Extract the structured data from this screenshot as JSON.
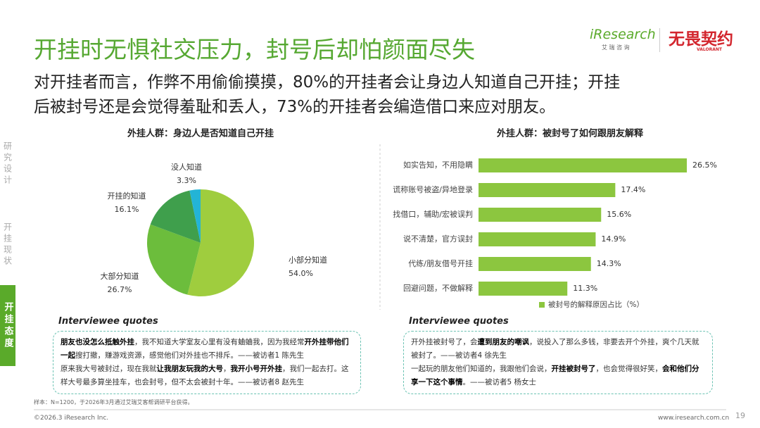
{
  "header": {
    "title": "开挂时无惧社交压力，封号后却怕颜面尽失",
    "subtitle_lines": [
      "对开挂者而言，作弊不用偷偷摸摸，80%的开挂者会让身边人知道自己开挂；开挂",
      "后被封号还是会觉得羞耻和丢人，73%的开挂者会编造借口来应对朋友。"
    ]
  },
  "brand": {
    "name": "iResearch",
    "name_cn": "艾 瑞 咨 询",
    "partner": "无畏契约",
    "partner_en": "VALORANT"
  },
  "sidebar": [
    {
      "text": "研究设计",
      "active": false
    },
    {
      "text": "开挂现状",
      "active": false
    },
    {
      "text": "开挂态度",
      "active": true
    }
  ],
  "chart_data": [
    {
      "type": "pie",
      "title": "外挂人群：身边人是否知道自己开挂",
      "categories": [
        "小部分知道",
        "大部分知道",
        "开挂的知道",
        "没人知道"
      ],
      "values": [
        54.0,
        26.7,
        16.1,
        3.3
      ],
      "value_labels": [
        "54.0%",
        "26.7%",
        "16.1%",
        "3.3%"
      ],
      "colors": [
        "#9fcd3e",
        "#6cbd3c",
        "#3f9f4c",
        "#23b4d6"
      ]
    },
    {
      "type": "hbar",
      "title": "外挂人群：被封号了如何跟朋友解释",
      "categories": [
        "如实告知，不用隐瞒",
        "谎称账号被盗/异地登录",
        "找借口，辅助/宏被误判",
        "说不清楚，官方误封",
        "代练/朋友借号开挂",
        "回避问题，不做解释"
      ],
      "series": [
        {
          "name": "被封号的解释原因占比（%）",
          "color": "#8cc63f",
          "values": [
            26.5,
            17.4,
            15.6,
            14.9,
            14.3,
            11.3
          ],
          "value_labels": [
            "26.5%",
            "17.4%",
            "15.6%",
            "14.9%",
            "14.3%",
            "11.3%"
          ]
        }
      ],
      "legend": "bottom"
    }
  ],
  "quotes": [
    {
      "heading": "Interviewee quotes",
      "paragraphs": [
        [
          {
            "text": "朋友也没怎么抵触外挂",
            "bold": true
          },
          {
            "text": "，我不知道大学室友心里有没有蛐蛐我，因为我经常",
            "bold": false
          },
          {
            "text": "开外挂带他们一起",
            "bold": true
          },
          {
            "text": "搜打撤，赚游戏资源，感觉他们对外挂也不排斥。——被访者1 陈先生",
            "bold": false
          }
        ],
        [
          {
            "text": "原来我大号被封过，现在我就",
            "bold": false
          },
          {
            "text": "让我朋友玩我的大号",
            "bold": true
          },
          {
            "text": "，",
            "bold": false
          },
          {
            "text": "我开小号开外挂",
            "bold": true
          },
          {
            "text": "，我们一起去打。这样大号最多算坐挂车，也会封号，但不太会被封十年。——被访者8 赵先生",
            "bold": false
          }
        ]
      ]
    },
    {
      "heading": "Interviewee quotes",
      "paragraphs": [
        [
          {
            "text": "开外挂被封号了，会",
            "bold": false
          },
          {
            "text": "遭到朋友的嘲讽",
            "bold": true
          },
          {
            "text": "，说投入了那么多钱，非要去开个外挂，爽个几天就被封了。——被访者4 徐先生",
            "bold": false
          }
        ],
        [
          {
            "text": "一起玩的朋友他们知道的，我跟他们会说，",
            "bold": false
          },
          {
            "text": "开挂被封号了",
            "bold": true
          },
          {
            "text": "，也会觉得很好笑，",
            "bold": false
          },
          {
            "text": "会和他们分享一下这个事情",
            "bold": true
          },
          {
            "text": "。——被访者5 杨女士",
            "bold": false
          }
        ]
      ]
    }
  ],
  "footer": {
    "note": "样本：N=1200，于2026年3月通过艾瑞艾客帮调研平台获得。",
    "copyright": "©2026.3 iResearch Inc.",
    "website": "www.iresearch.com.cn",
    "page": "19"
  }
}
